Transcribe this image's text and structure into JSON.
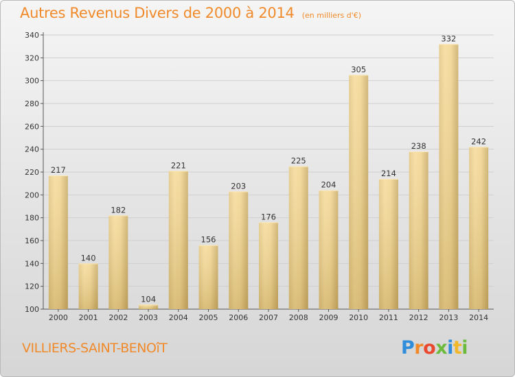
{
  "header": {
    "title": "Autres Revenus Divers de 2000 à 2014",
    "subtitle": "(en milliers d'€)"
  },
  "footer": {
    "commune": "VILLIERS-SAINT-BENOîT",
    "brand": "Proxiti"
  },
  "colors": {
    "title": "#f08a2a",
    "bar_light": "#f7dd9b",
    "bar_dark": "#c9aa63",
    "grid": "#cfcfcf"
  },
  "chart_data": {
    "type": "bar",
    "title": "Autres Revenus Divers de 2000 à 2014",
    "subtitle": "(en milliers d'€)",
    "xlabel": "",
    "ylabel": "",
    "categories": [
      "2000",
      "2001",
      "2002",
      "2003",
      "2004",
      "2005",
      "2006",
      "2007",
      "2008",
      "2009",
      "2010",
      "2011",
      "2012",
      "2013",
      "2014"
    ],
    "values": [
      217,
      140,
      182,
      104,
      221,
      156,
      203,
      176,
      225,
      204,
      305,
      214,
      238,
      332,
      242
    ],
    "ylim": [
      100,
      340
    ],
    "yticks": [
      100,
      120,
      140,
      160,
      180,
      200,
      220,
      240,
      260,
      280,
      300,
      320,
      340
    ],
    "grid": true,
    "data_labels": true,
    "legend": "none"
  }
}
